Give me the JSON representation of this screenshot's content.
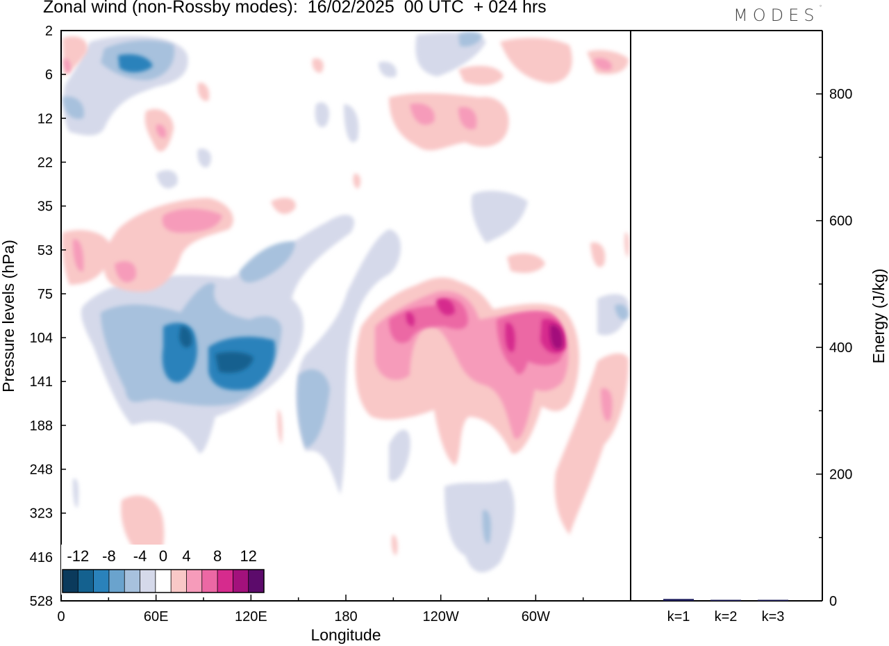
{
  "header": {
    "title": "Zonal wind (non-Rossby modes):  16/02/2025  00 UTC  + 024 hrs",
    "logo_text": "MODES",
    "logo_mark": "°"
  },
  "chart_data": [
    {
      "type": "heatmap",
      "xlabel": "Longitude",
      "ylabel": "Pressure levels (hPa)",
      "x_ticks": [
        "0",
        "60E",
        "120E",
        "180",
        "120W",
        "60W"
      ],
      "y_ticks": [
        "2",
        "6",
        "12",
        "22",
        "35",
        "53",
        "75",
        "104",
        "141",
        "188",
        "248",
        "323",
        "416",
        "528"
      ],
      "colorbar": {
        "labels": [
          "-12",
          "-8",
          "-4",
          "0",
          "4",
          "8",
          "12"
        ],
        "levels": [
          -14,
          -12,
          -10,
          -8,
          -6,
          -4,
          -2,
          2,
          4,
          6,
          8,
          10,
          12,
          14
        ],
        "colors": [
          "#0b3a5c",
          "#14618f",
          "#2a82bb",
          "#6aa3cd",
          "#a7c1dd",
          "#d5d9ea",
          "#ffffff",
          "#f9c8c7",
          "#f69bba",
          "#ec68a4",
          "#d62b8d",
          "#a3117c",
          "#5c0b6b"
        ]
      },
      "features": [
        {
          "label": "negative core",
          "lon": 70,
          "level": "104",
          "value": -10
        },
        {
          "label": "negative core",
          "lon": 100,
          "level": "104",
          "value": -10
        },
        {
          "label": "negative core",
          "lon": 30,
          "level": "6",
          "value": -6
        },
        {
          "label": "positive core",
          "lon": 208,
          "level": "104",
          "value": 8
        },
        {
          "label": "positive core",
          "lon": 233,
          "level": "75",
          "value": 10
        },
        {
          "label": "positive core",
          "lon": 279,
          "level": "104",
          "value": 10
        },
        {
          "label": "positive core",
          "lon": 300,
          "level": "104",
          "value": 14
        }
      ]
    },
    {
      "type": "bar",
      "categories": [
        "k=1",
        "k=2",
        "k=3"
      ],
      "values": [
        3,
        1,
        1
      ],
      "ylabel": "Energy (J/kg)",
      "ylim": [
        0,
        900
      ],
      "y_ticks": [
        "0",
        "200",
        "400",
        "600",
        "800"
      ],
      "bar_color": "#1f1f5e"
    }
  ]
}
